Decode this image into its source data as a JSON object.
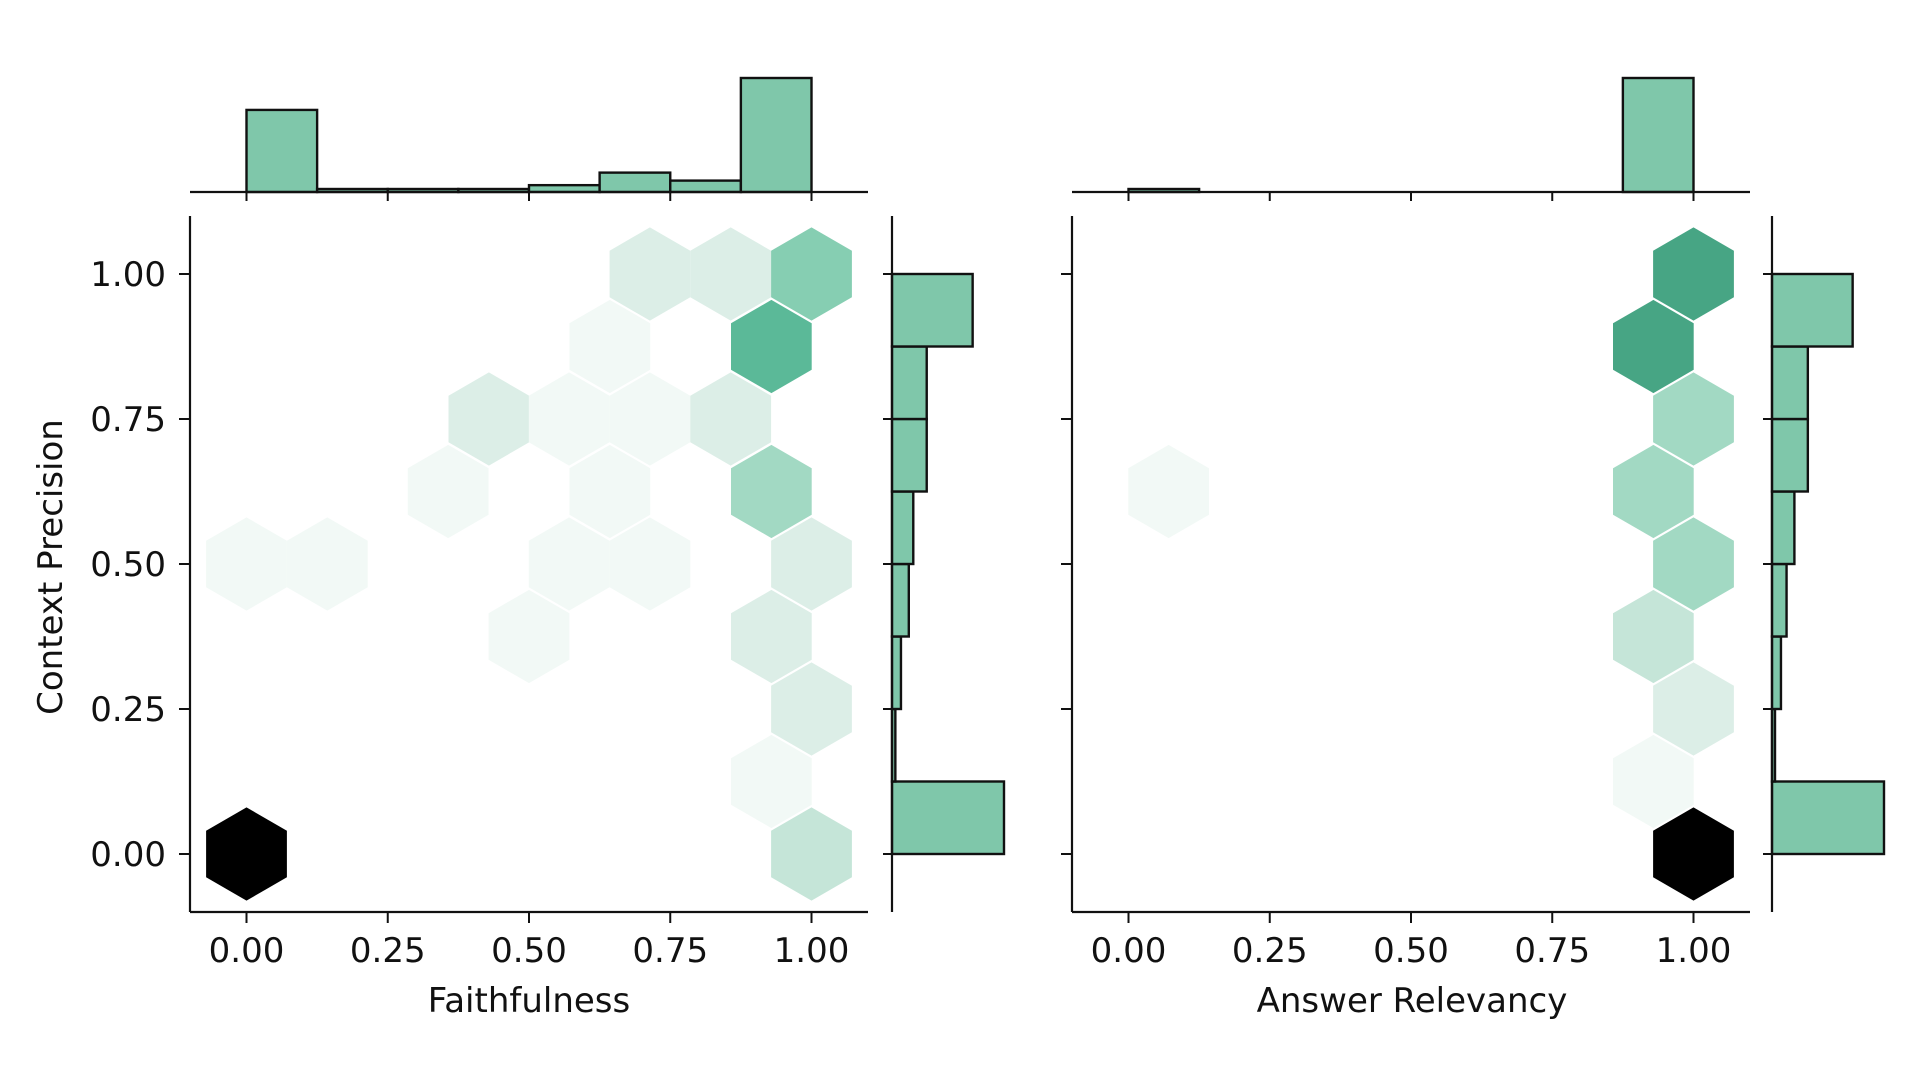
{
  "colors": {
    "hist_fill": "#7fc7aa",
    "hist_stroke": "#111111",
    "hex_color_scale": [
      "#f2f9f6",
      "#dceee7",
      "#c5e5d8",
      "#a2d9c3",
      "#86ceb2",
      "#5bb998",
      "#47a584",
      "#000000"
    ],
    "axis": "#111111"
  },
  "chart_data": [
    {
      "type": "hexbin",
      "xlabel": "Faithfulness",
      "ylabel": "Context Precision",
      "xlim": [
        -0.1,
        1.1
      ],
      "ylim": [
        -0.1,
        1.1
      ],
      "xticks": [
        "0.00",
        "0.25",
        "0.50",
        "0.75",
        "1.00"
      ],
      "yticks": [
        "0.00",
        "0.25",
        "0.50",
        "0.75",
        "1.00"
      ],
      "grid": false,
      "hexbins": [
        {
          "x": 0.0,
          "y": 0.0,
          "level": 7
        },
        {
          "x": 0.0,
          "y": 0.5,
          "level": 0
        },
        {
          "x": 0.143,
          "y": 0.5,
          "level": 0
        },
        {
          "x": 0.357,
          "y": 0.625,
          "level": 0
        },
        {
          "x": 0.429,
          "y": 0.75,
          "level": 1
        },
        {
          "x": 0.5,
          "y": 0.375,
          "level": 0
        },
        {
          "x": 0.571,
          "y": 0.5,
          "level": 0
        },
        {
          "x": 0.571,
          "y": 0.75,
          "level": 0
        },
        {
          "x": 0.643,
          "y": 0.625,
          "level": 0
        },
        {
          "x": 0.643,
          "y": 0.875,
          "level": 0
        },
        {
          "x": 0.714,
          "y": 0.5,
          "level": 0
        },
        {
          "x": 0.714,
          "y": 0.75,
          "level": 0
        },
        {
          "x": 0.714,
          "y": 1.0,
          "level": 1
        },
        {
          "x": 0.857,
          "y": 1.0,
          "level": 1
        },
        {
          "x": 0.857,
          "y": 0.75,
          "level": 1
        },
        {
          "x": 0.929,
          "y": 0.875,
          "level": 5
        },
        {
          "x": 1.0,
          "y": 1.0,
          "level": 4
        },
        {
          "x": 0.929,
          "y": 0.625,
          "level": 3
        },
        {
          "x": 1.0,
          "y": 0.5,
          "level": 1
        },
        {
          "x": 0.929,
          "y": 0.375,
          "level": 1
        },
        {
          "x": 1.0,
          "y": 0.25,
          "level": 1
        },
        {
          "x": 0.929,
          "y": 0.125,
          "level": 0
        },
        {
          "x": 1.0,
          "y": 0.0,
          "level": 2
        }
      ],
      "marginal_x": {
        "bin_edges": [
          0.0,
          0.125,
          0.25,
          0.375,
          0.5,
          0.625,
          0.75,
          0.875,
          1.0
        ],
        "counts": [
          0.72,
          0.02,
          0.01,
          0.01,
          0.06,
          0.17,
          0.1,
          1.0
        ]
      },
      "marginal_y": {
        "bin_edges": [
          0.0,
          0.125,
          0.25,
          0.375,
          0.5,
          0.625,
          0.75,
          0.875,
          1.0
        ],
        "counts": [
          1.0,
          0.03,
          0.08,
          0.15,
          0.19,
          0.31,
          0.31,
          0.72
        ]
      }
    },
    {
      "type": "hexbin",
      "xlabel": "Answer Relevancy",
      "ylabel": "",
      "xlim": [
        -0.1,
        1.1
      ],
      "ylim": [
        -0.1,
        1.1
      ],
      "xticks": [
        "0.00",
        "0.25",
        "0.50",
        "0.75",
        "1.00"
      ],
      "yticks": [],
      "grid": false,
      "hexbins": [
        {
          "x": 0.071,
          "y": 0.625,
          "level": 0
        },
        {
          "x": 1.0,
          "y": 0.0,
          "level": 7
        },
        {
          "x": 0.929,
          "y": 0.125,
          "level": 0
        },
        {
          "x": 1.0,
          "y": 0.25,
          "level": 1
        },
        {
          "x": 0.929,
          "y": 0.375,
          "level": 2
        },
        {
          "x": 1.0,
          "y": 0.5,
          "level": 3
        },
        {
          "x": 0.929,
          "y": 0.625,
          "level": 3
        },
        {
          "x": 1.0,
          "y": 0.75,
          "level": 3
        },
        {
          "x": 0.929,
          "y": 0.875,
          "level": 6
        },
        {
          "x": 1.0,
          "y": 1.0,
          "level": 6
        }
      ],
      "marginal_x": {
        "bin_edges": [
          0.0,
          0.125,
          0.25,
          0.375,
          0.5,
          0.625,
          0.75,
          0.875,
          1.0
        ],
        "counts": [
          0.02,
          0.0,
          0.0,
          0.0,
          0.0,
          0.0,
          0.0,
          1.0
        ]
      },
      "marginal_y": {
        "bin_edges": [
          0.0,
          0.125,
          0.25,
          0.375,
          0.5,
          0.625,
          0.75,
          0.875,
          1.0
        ],
        "counts": [
          1.0,
          0.02,
          0.08,
          0.13,
          0.2,
          0.32,
          0.32,
          0.72
        ]
      }
    }
  ]
}
